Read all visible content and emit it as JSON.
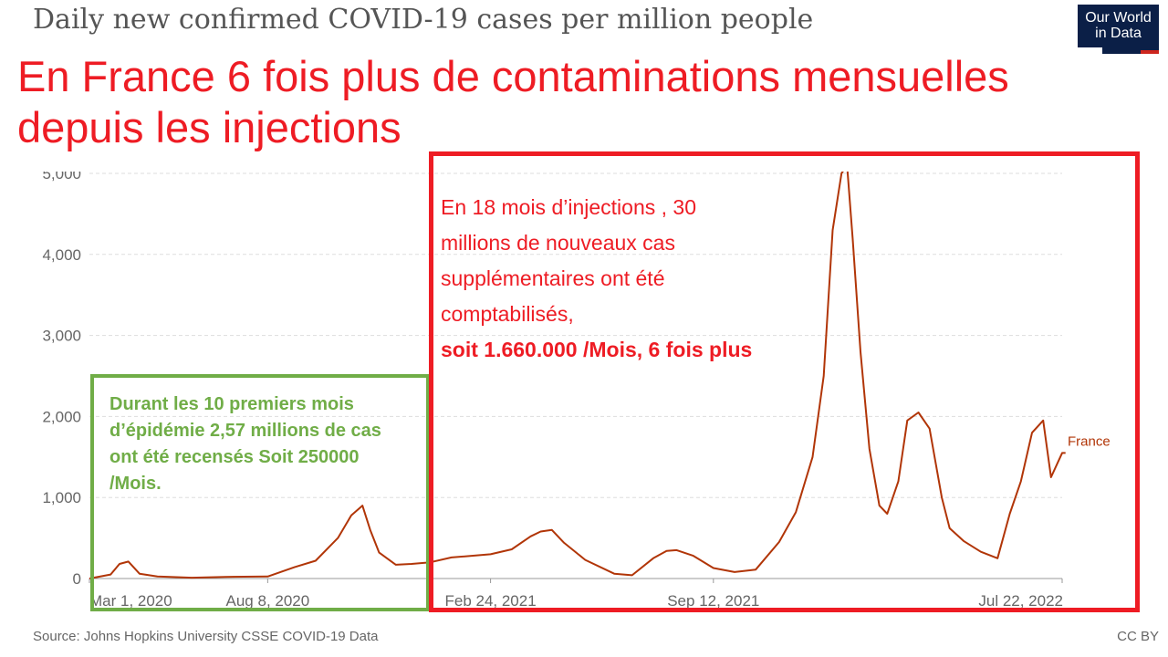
{
  "chart_data": {
    "type": "line",
    "title": "Daily new confirmed COVID-19 cases per million people",
    "ylabel": "",
    "xlabel": "",
    "ylim": [
      0,
      5000
    ],
    "y_ticks": [
      "0",
      "1,000",
      "2,000",
      "3,000",
      "4,000",
      "5,000"
    ],
    "x_ticks": [
      "Mar 1, 2020",
      "Aug 8, 2020",
      "Feb 24, 2021",
      "Sep 12, 2021",
      "Jul 22, 2022"
    ],
    "grid": "horizontal dashed",
    "series": [
      {
        "name": "France",
        "color": "#b13507",
        "x": [
          "2020-03-01",
          "2020-03-20",
          "2020-03-28",
          "2020-04-05",
          "2020-04-15",
          "2020-05-01",
          "2020-06-01",
          "2020-07-01",
          "2020-08-08",
          "2020-09-01",
          "2020-09-20",
          "2020-10-10",
          "2020-10-22",
          "2020-11-01",
          "2020-11-08",
          "2020-11-16",
          "2020-12-01",
          "2020-12-15",
          "2021-01-01",
          "2021-01-20",
          "2021-02-24",
          "2021-03-15",
          "2021-04-01",
          "2021-04-10",
          "2021-04-20",
          "2021-05-01",
          "2021-05-20",
          "2021-06-15",
          "2021-07-01",
          "2021-07-20",
          "2021-08-01",
          "2021-08-10",
          "2021-08-25",
          "2021-09-12",
          "2021-10-01",
          "2021-10-20",
          "2021-11-10",
          "2021-11-25",
          "2021-12-10",
          "2021-12-20",
          "2021-12-28",
          "2022-01-05",
          "2022-01-10",
          "2022-01-15",
          "2022-01-22",
          "2022-01-30",
          "2022-02-08",
          "2022-02-15",
          "2022-02-25",
          "2022-03-05",
          "2022-03-15",
          "2022-03-25",
          "2022-04-05",
          "2022-04-12",
          "2022-04-25",
          "2022-05-10",
          "2022-05-25",
          "2022-06-05",
          "2022-06-15",
          "2022-06-25",
          "2022-07-05",
          "2022-07-12",
          "2022-07-22",
          "2022-07-25"
        ],
        "values": [
          0,
          50,
          180,
          210,
          60,
          25,
          10,
          20,
          25,
          140,
          220,
          500,
          780,
          900,
          600,
          320,
          170,
          180,
          200,
          260,
          300,
          360,
          520,
          580,
          600,
          440,
          230,
          60,
          40,
          250,
          340,
          350,
          280,
          130,
          80,
          110,
          450,
          820,
          1500,
          2500,
          4300,
          5000,
          5100,
          4200,
          2800,
          1600,
          900,
          800,
          1200,
          1950,
          2050,
          1850,
          1000,
          620,
          460,
          330,
          250,
          800,
          1200,
          1800,
          1950,
          1250,
          1550,
          1550
        ]
      }
    ],
    "series_label": "France"
  },
  "logo": {
    "line1": "Our World",
    "line2": "in Data"
  },
  "headline": {
    "line1": "En France 6 fois plus de contaminations mensuelles",
    "line2": "depuis les injections"
  },
  "green_annotation": {
    "line1": "Durant les 10 premiers mois",
    "line2": "d’épidémie 2,57 millions de cas",
    "line3": "ont été recensés Soit 250000",
    "line4": "/Mois.",
    "color": "#70ad47"
  },
  "red_annotation": {
    "line1": "En 18 mois d’injections , 30",
    "line2": "millions de nouveaux cas",
    "line3": "supplémentaires ont été",
    "line4": "comptabilisés,",
    "line5": "soit 1.660.000 /Mois, 6 fois plus",
    "color": "#ee1c24"
  },
  "footer": {
    "source": "Source: Johns Hopkins University CSSE COVID-19 Data",
    "license": "CC BY"
  }
}
